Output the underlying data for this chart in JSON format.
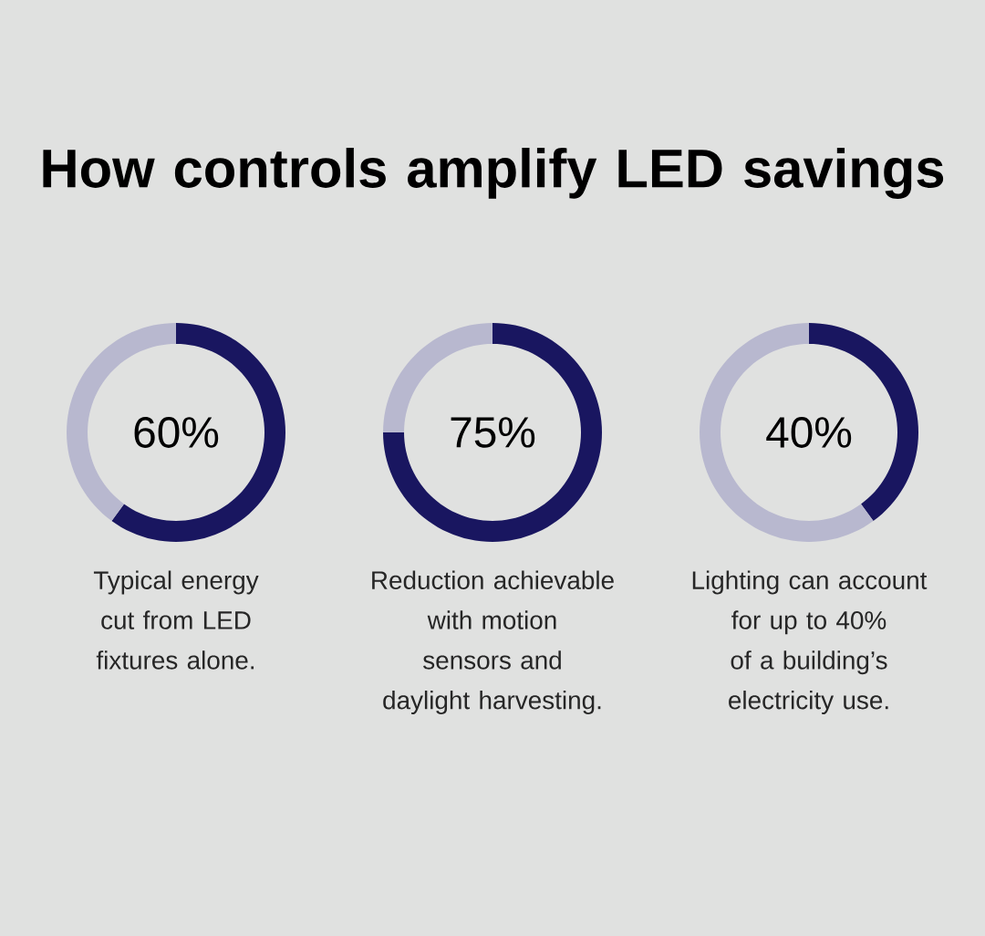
{
  "chart_data": [
    {
      "type": "donut",
      "title": "How controls amplify LED savings",
      "categories": [
        null,
        null
      ],
      "values": [
        60,
        40
      ],
      "colors": [
        "#191660",
        "#b8b8cf"
      ],
      "annotations": [
        "60%",
        "Typical energy cut from LED fixtures alone."
      ]
    },
    {
      "type": "donut",
      "categories": [
        null,
        null
      ],
      "values": [
        75,
        25
      ],
      "colors": [
        "#191660",
        "#b8b8cf"
      ],
      "annotations": [
        "75%",
        "Reduction achievable with motion sensors and daylight harvesting."
      ]
    },
    {
      "type": "donut",
      "categories": [
        null,
        null
      ],
      "values": [
        40,
        60
      ],
      "colors": [
        "#191660",
        "#b8b8cf"
      ],
      "annotations": [
        "40%",
        "Lighting can account for up to 40% of a building’s electricity use."
      ]
    }
  ]
}
